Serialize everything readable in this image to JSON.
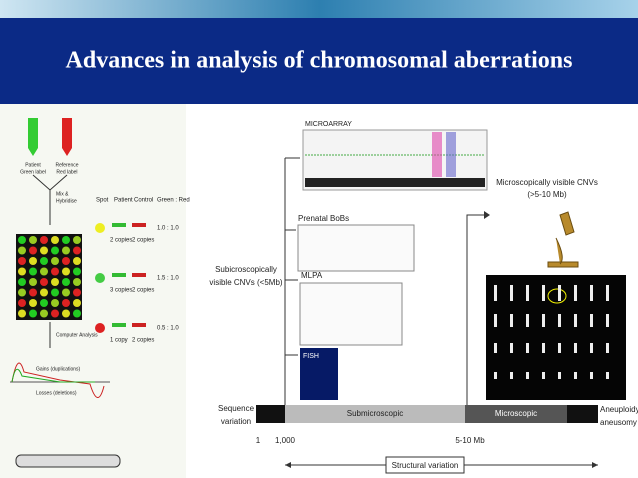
{
  "title": "Advances in analysis of chromosomal aberrations",
  "left_panel": {
    "patient_label": [
      "Patient",
      "Green label"
    ],
    "reference_label": [
      "Reference",
      "Red label"
    ],
    "mix_label": [
      "Mix &",
      "Hybridise"
    ],
    "table_header": [
      "Spot",
      "Patient",
      "Control",
      "Green : Red"
    ],
    "table_rows": [
      {
        "patient": "2 copies",
        "control": "2 copies",
        "ratio": "1.0 : 1.0"
      },
      {
        "patient": "3 copies",
        "control": "2 copies",
        "ratio": "1.5 : 1.0"
      },
      {
        "patient": "1 copy",
        "control": "2 copies",
        "ratio": "0.5 : 1.0"
      }
    ],
    "analysis_label": "Computer Analysis",
    "gains_label": "Gains (duplications)",
    "losses_label": "Losses (deletions)"
  },
  "right_panel": {
    "microarray": "MICROARRAY",
    "bobs": "Prenatal BoBs",
    "mlpa": "MLPA",
    "fish": "FISH",
    "submicroscopic_cnv": [
      "Subicroscopically",
      "visible CNVs (<5Mb)"
    ],
    "microscopic_cnv": [
      "Microscopically visible CNVs",
      "(>5-10 Mb)"
    ],
    "sequence_variation": [
      "Sequence",
      "variation"
    ],
    "submicroscopic": "Submicroscopic",
    "microscopic": "Microscopic",
    "aneuploidy": [
      "Aneuploidy/",
      "aneusomy"
    ],
    "scale_labels": [
      "1",
      "1,000",
      "5-10 Mb"
    ],
    "structural_variation": "Structural variation"
  }
}
